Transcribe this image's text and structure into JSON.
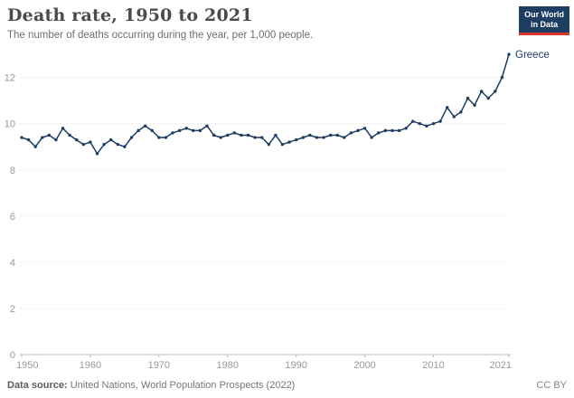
{
  "header": {
    "title": "Death rate, 1950 to 2021",
    "subtitle": "The number of deaths occurring during the year, per 1,000 people."
  },
  "logo": {
    "line1": "Our World",
    "line2": "in Data",
    "bg_color": "#1d3d63",
    "bar_color": "#d7352a"
  },
  "chart_data": {
    "type": "line",
    "title": "Death rate, 1950 to 2021",
    "xlabel": "",
    "ylabel": "",
    "xlim": [
      1950,
      2021
    ],
    "ylim": [
      0,
      13.2
    ],
    "x_ticks": [
      1950,
      1960,
      1970,
      1980,
      1990,
      2000,
      2010,
      2021
    ],
    "y_ticks": [
      0,
      2,
      4,
      6,
      8,
      10,
      12
    ],
    "grid": "horizontal-dotted",
    "legend_position": "end-of-line-label",
    "series": [
      {
        "name": "Greece",
        "color": "#1d3d63",
        "x": [
          1950,
          1951,
          1952,
          1953,
          1954,
          1955,
          1956,
          1957,
          1958,
          1959,
          1960,
          1961,
          1962,
          1963,
          1964,
          1965,
          1966,
          1967,
          1968,
          1969,
          1970,
          1971,
          1972,
          1973,
          1974,
          1975,
          1976,
          1977,
          1978,
          1979,
          1980,
          1981,
          1982,
          1983,
          1984,
          1985,
          1986,
          1987,
          1988,
          1989,
          1990,
          1991,
          1992,
          1993,
          1994,
          1995,
          1996,
          1997,
          1998,
          1999,
          2000,
          2001,
          2002,
          2003,
          2004,
          2005,
          2006,
          2007,
          2008,
          2009,
          2010,
          2011,
          2012,
          2013,
          2014,
          2015,
          2016,
          2017,
          2018,
          2019,
          2020,
          2021
        ],
        "values": [
          9.4,
          9.3,
          9.0,
          9.4,
          9.5,
          9.3,
          9.8,
          9.5,
          9.3,
          9.1,
          9.2,
          8.7,
          9.1,
          9.3,
          9.1,
          9.0,
          9.4,
          9.7,
          9.9,
          9.7,
          9.4,
          9.4,
          9.6,
          9.7,
          9.8,
          9.7,
          9.7,
          9.9,
          9.5,
          9.4,
          9.5,
          9.6,
          9.5,
          9.5,
          9.4,
          9.4,
          9.1,
          9.5,
          9.1,
          9.2,
          9.3,
          9.4,
          9.5,
          9.4,
          9.4,
          9.5,
          9.5,
          9.4,
          9.6,
          9.7,
          9.8,
          9.4,
          9.6,
          9.7,
          9.7,
          9.7,
          9.8,
          10.1,
          10.0,
          9.9,
          10.0,
          10.1,
          10.7,
          10.3,
          10.5,
          11.1,
          10.8,
          11.4,
          11.1,
          11.4,
          12.0,
          13.0
        ]
      }
    ]
  },
  "colors": {
    "line": "#1d3d63",
    "grid": "#d8d8d8",
    "axis": "#bcbcbc",
    "tick_text": "#999999"
  },
  "footer": {
    "source_label": "Data source:",
    "source_text": " United Nations, World Population Prospects (2022)",
    "license": "CC BY"
  }
}
